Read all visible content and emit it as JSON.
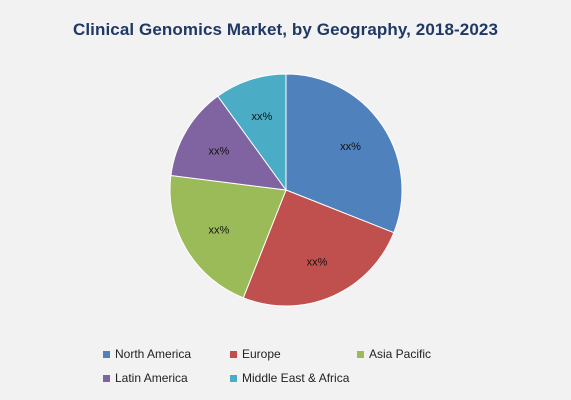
{
  "chart_data": {
    "type": "pie",
    "title": "Clinical Genomics Market, by Geography, 2018-2023",
    "slices": [
      {
        "name": "North America",
        "value": 31,
        "label": "xx%",
        "color": "#4f81bd"
      },
      {
        "name": "Europe",
        "value": 25,
        "label": "xx%",
        "color": "#c0504d"
      },
      {
        "name": "Asia Pacific",
        "value": 21,
        "label": "xx%",
        "color": "#9bbb59"
      },
      {
        "name": "Latin America",
        "value": 13,
        "label": "xx%",
        "color": "#8064a2"
      },
      {
        "name": "Middle East & Africa",
        "value": 10,
        "label": "xx%",
        "color": "#4bacc6"
      }
    ],
    "legend_position": "bottom"
  }
}
